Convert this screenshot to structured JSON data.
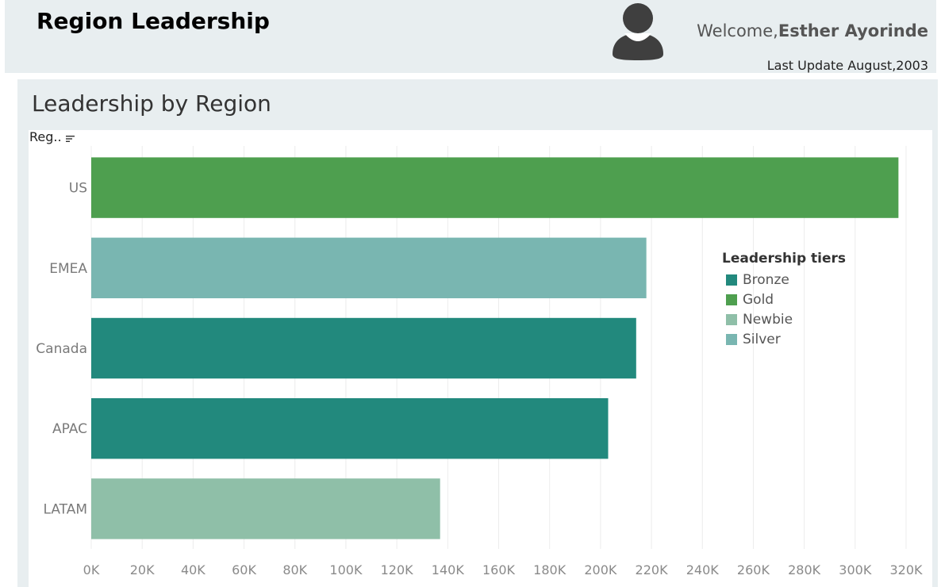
{
  "header": {
    "title": "Region Leadership",
    "welcome_prefix": "Welcome,",
    "user_name": "Esther Ayorinde",
    "last_update": "Last Update August,2003"
  },
  "panel": {
    "title": "Leadership by Region",
    "sort_field_label": "Reg.."
  },
  "colors": {
    "Bronze": "#22897d",
    "Gold": "#4e9f4f",
    "Newbie": "#8fbfa8",
    "Silver": "#79b6b1"
  },
  "icons": {
    "avatar": "user-avatar-icon",
    "sort": "sort-descending-icon"
  },
  "legend": {
    "title": "Leadership tiers",
    "items": [
      {
        "label": "Bronze",
        "color": "#22897d"
      },
      {
        "label": "Gold",
        "color": "#4e9f4f"
      },
      {
        "label": "Newbie",
        "color": "#8fbfa8"
      },
      {
        "label": "Silver",
        "color": "#79b6b1"
      }
    ]
  },
  "chart_data": {
    "type": "bar",
    "orientation": "horizontal",
    "title": "Leadership by Region",
    "categories": [
      "US",
      "EMEA",
      "Canada",
      "APAC",
      "LATAM"
    ],
    "values": [
      317000,
      218000,
      214000,
      203000,
      137000
    ],
    "tiers": [
      "Gold",
      "Silver",
      "Bronze",
      "Bronze",
      "Newbie"
    ],
    "xlim": [
      0,
      320000
    ],
    "xticks": [
      0,
      20000,
      40000,
      60000,
      80000,
      100000,
      120000,
      140000,
      160000,
      180000,
      200000,
      220000,
      240000,
      260000,
      280000,
      300000,
      320000
    ],
    "xtick_labels": [
      "0K",
      "20K",
      "40K",
      "60K",
      "80K",
      "100K",
      "120K",
      "140K",
      "160K",
      "180K",
      "200K",
      "220K",
      "240K",
      "260K",
      "280K",
      "300K",
      "320K"
    ],
    "xlabel": "",
    "ylabel": "",
    "grid": true,
    "legend_position": "right"
  }
}
